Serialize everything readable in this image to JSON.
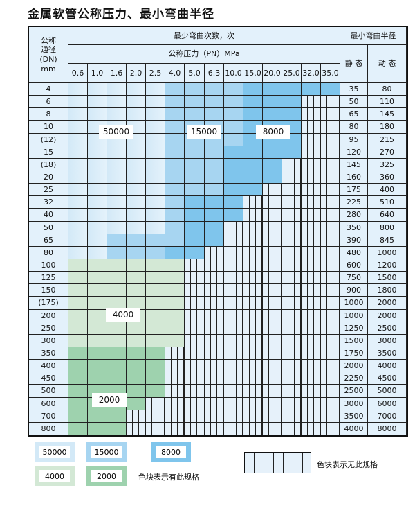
{
  "title": "金属软管公称压力、最小弯曲半径",
  "header": {
    "dn": "公称\n通径\n(DN)\nmm",
    "cycles": "最少弯曲次数，次",
    "pressure": "公称压力（PN）MPa",
    "radius": "最小弯曲半径",
    "static": "静 态",
    "dynamic": "动 态",
    "pressures": [
      "0.6",
      "1.0",
      "1.6",
      "2.0",
      "2.5",
      "4.0",
      "5.0",
      "6.3",
      "10.0",
      "15.0",
      "20.0",
      "25.0",
      "32.0",
      "35.0"
    ]
  },
  "spec_colors": {
    "A": "#d3e9f7",
    "B": "#a7d5f1",
    "C": "#7fc5ec",
    "G1": "#d3e8d5",
    "G2": "#9ed2ae",
    "X": "hatched"
  },
  "spec_values": {
    "A": "50000",
    "B": "15000",
    "C": "8000",
    "G1": "4000",
    "G2": "2000"
  },
  "rows": [
    {
      "dn": "4",
      "static": "35",
      "dynamic": "80",
      "cells": "A A A A A B B B B C C C C C"
    },
    {
      "dn": "6",
      "static": "50",
      "dynamic": "110",
      "cells": "A A A A A B B B B C C C X X"
    },
    {
      "dn": "8",
      "static": "65",
      "dynamic": "145",
      "cells": "A A A A A B B B B C C C X X"
    },
    {
      "dn": "10",
      "static": "80",
      "dynamic": "180",
      "cells": "A A A A A B B B B C C C X X"
    },
    {
      "dn": "(12)",
      "static": "95",
      "dynamic": "215",
      "cells": "A A A A A B B B B C C C X X"
    },
    {
      "dn": "15",
      "static": "120",
      "dynamic": "270",
      "cells": "A A A A A B B B C C C C X X"
    },
    {
      "dn": "(18)",
      "static": "145",
      "dynamic": "325",
      "cells": "A A A A A B B B C C C X X X"
    },
    {
      "dn": "20",
      "static": "160",
      "dynamic": "360",
      "cells": "A A A A A B B B C C C X X X"
    },
    {
      "dn": "25",
      "static": "175",
      "dynamic": "400",
      "cells": "A A A A A B B B C C X X X X"
    },
    {
      "dn": "32",
      "static": "225",
      "dynamic": "510",
      "cells": "A A A A A B C C C X X X X X"
    },
    {
      "dn": "40",
      "static": "280",
      "dynamic": "640",
      "cells": "A A A A A B C C C X X X X X"
    },
    {
      "dn": "50",
      "static": "350",
      "dynamic": "800",
      "cells": "A A A A A B C C X X X X X X"
    },
    {
      "dn": "65",
      "static": "390",
      "dynamic": "845",
      "cells": "A A B B B B C C X X X X X X"
    },
    {
      "dn": "80",
      "static": "480",
      "dynamic": "1000",
      "cells": "A A B B B C C X X X X X X X"
    },
    {
      "dn": "100",
      "static": "600",
      "dynamic": "1200",
      "cells": "G1 G1 G1 G1 G1 G1 X X X X X X X X"
    },
    {
      "dn": "125",
      "static": "750",
      "dynamic": "1500",
      "cells": "G1 G1 G1 G1 G1 G1 X X X X X X X X"
    },
    {
      "dn": "150",
      "static": "900",
      "dynamic": "1800",
      "cells": "G1 G1 G1 G1 G1 G1 X X X X X X X X"
    },
    {
      "dn": "(175)",
      "static": "1000",
      "dynamic": "2000",
      "cells": "G1 G1 G1 G1 G1 G1 X X X X X X X X"
    },
    {
      "dn": "200",
      "static": "1000",
      "dynamic": "2000",
      "cells": "G1 G1 G1 G1 G1 G1 X X X X X X X X"
    },
    {
      "dn": "250",
      "static": "1250",
      "dynamic": "2500",
      "cells": "G1 G1 G1 G1 G1 G1 X X X X X X X X"
    },
    {
      "dn": "300",
      "static": "1500",
      "dynamic": "3000",
      "cells": "G1 G1 G1 G1 G1 G1 X X X X X X X X"
    },
    {
      "dn": "350",
      "static": "1750",
      "dynamic": "3500",
      "cells": "G2 G2 G2 G2 G2 X X X X X X X X X"
    },
    {
      "dn": "400",
      "static": "2000",
      "dynamic": "4000",
      "cells": "G2 G2 G2 G2 G2 X X X X X X X X X"
    },
    {
      "dn": "450",
      "static": "2250",
      "dynamic": "4500",
      "cells": "G2 G2 G2 G2 G2 X X X X X X X X X"
    },
    {
      "dn": "500",
      "static": "2500",
      "dynamic": "5000",
      "cells": "G2 G2 G2 G2 G2 X X X X X X X X X"
    },
    {
      "dn": "600",
      "static": "3000",
      "dynamic": "6000",
      "cells": "G2 G2 G2 G2 X X X X X X X X X X"
    },
    {
      "dn": "700",
      "static": "3500",
      "dynamic": "7000",
      "cells": "G2 G2 G2 X X X X X X X X X X X"
    },
    {
      "dn": "800",
      "static": "4000",
      "dynamic": "8000",
      "cells": "G2 G2 G2 X X X X X X X X X X X"
    }
  ],
  "legend": {
    "available": "色块表示有此规格",
    "unavailable": "色块表示无此规格"
  }
}
